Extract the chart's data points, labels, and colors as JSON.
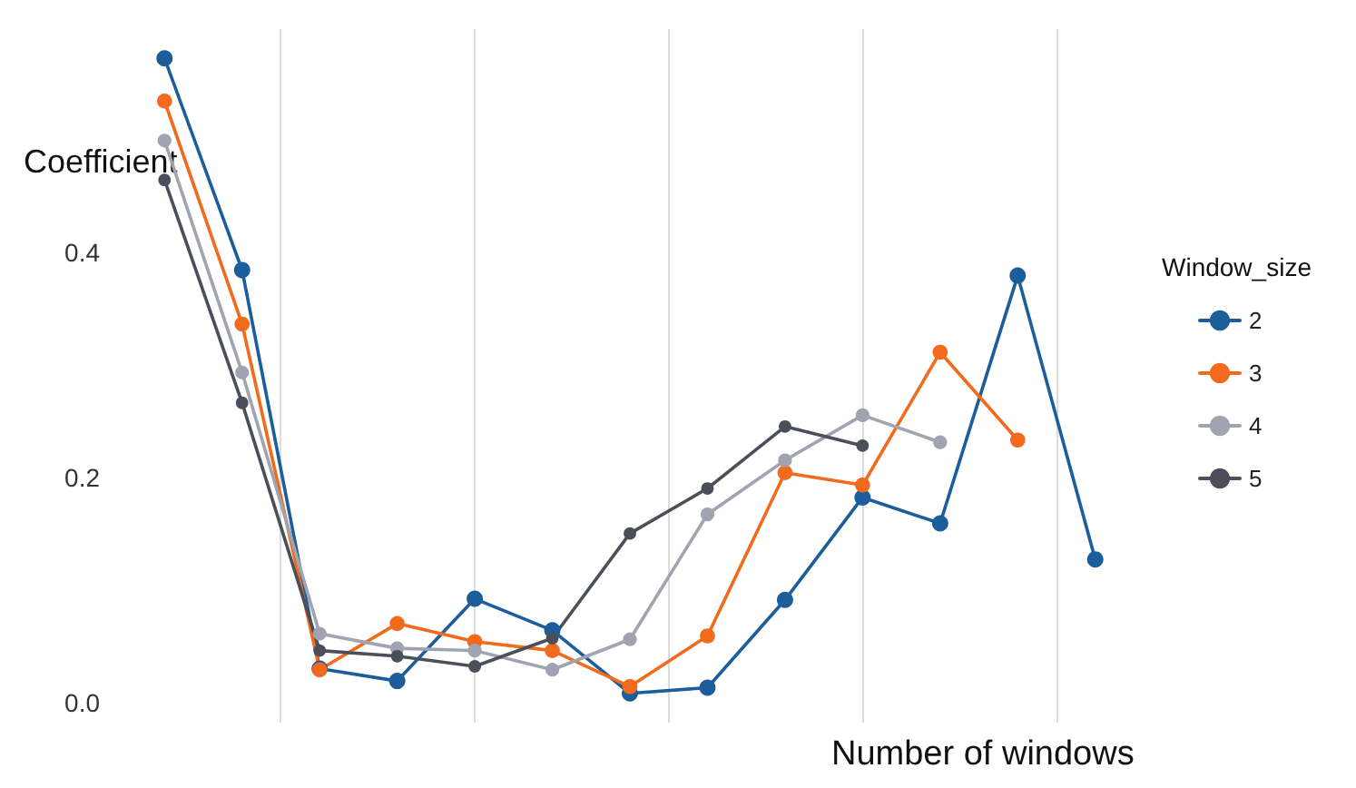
{
  "chart_data": {
    "type": "line",
    "xlabel": "Number of windows",
    "ylabel": "Coefficient",
    "legend_title": "Window_size",
    "categories": [
      null,
      null,
      null,
      null,
      null,
      null,
      null,
      null,
      null,
      null,
      null,
      null,
      null
    ],
    "ylim": [
      -0.018,
      0.598
    ],
    "yticks": [
      {
        "value": 0,
        "label": "0.0"
      },
      {
        "value": 0.2,
        "label": "0.2"
      },
      {
        "value": 0.4,
        "label": "0.4"
      }
    ],
    "tick_labels": "y",
    "grid": "x",
    "legend": "right",
    "marker": "circle",
    "line_style": "solid",
    "series": [
      {
        "name": "2",
        "color": "#1b5e9b",
        "values": [
          0.572,
          0.384,
          0.03,
          0.019,
          0.092,
          0.064,
          0.008,
          0.013,
          0.091,
          0.182,
          0.159,
          0.379,
          0.127
        ]
      },
      {
        "name": "3",
        "color": "#f26b1d",
        "values": [
          0.534,
          0.336,
          0.029,
          0.07,
          0.054,
          0.046,
          0.014,
          0.059,
          0.204,
          0.193,
          0.311,
          0.233,
          null
        ]
      },
      {
        "name": "4",
        "color": "#a0a3b0",
        "values": [
          0.499,
          0.293,
          0.061,
          0.048,
          0.046,
          0.029,
          0.056,
          0.167,
          0.215,
          0.255,
          0.231,
          null,
          null
        ]
      },
      {
        "name": "5",
        "color": "#4a4f5a",
        "values": [
          0.464,
          0.266,
          0.046,
          0.041,
          0.032,
          0.057,
          0.15,
          0.19,
          0.245,
          0.228,
          null,
          null,
          null
        ]
      }
    ]
  }
}
